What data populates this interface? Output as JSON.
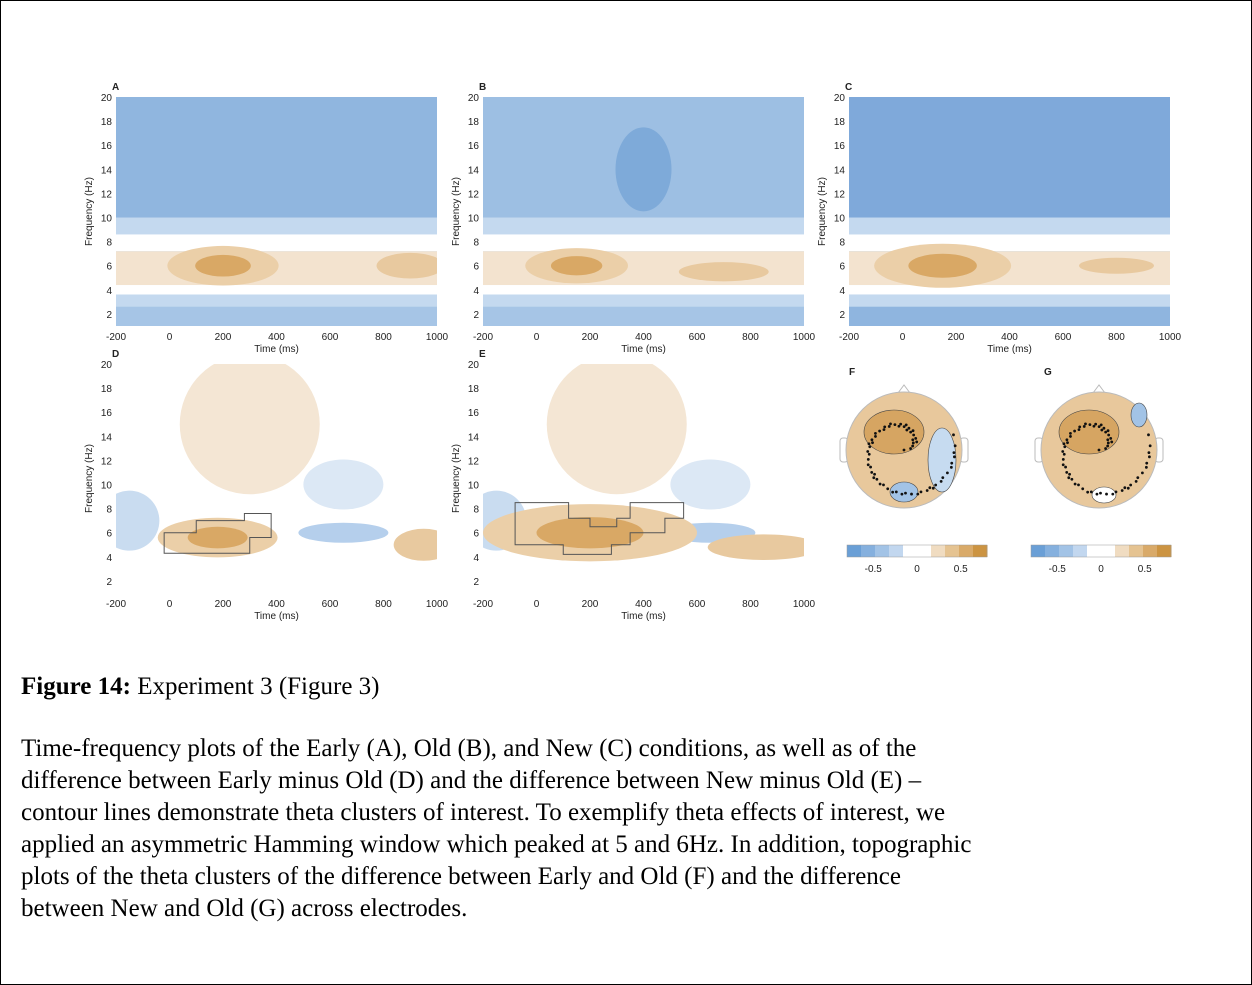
{
  "figure": {
    "panels": [
      {
        "label": "A",
        "xlabel": "Time (ms)",
        "ylabel": "Frequency (Hz)",
        "xlim": [
          -200,
          1000
        ],
        "ylim": [
          1,
          20
        ],
        "xticks": [
          -200,
          0,
          200,
          400,
          600,
          800,
          1000
        ],
        "yticks": [
          2,
          4,
          6,
          8,
          10,
          12,
          14,
          16,
          18,
          20
        ]
      },
      {
        "label": "B",
        "xlabel": "Time (ms)",
        "ylabel": "Frequency (Hz)",
        "xlim": [
          -200,
          1000
        ],
        "ylim": [
          1,
          20
        ],
        "xticks": [
          -200,
          0,
          200,
          400,
          600,
          800,
          1000
        ],
        "yticks": [
          2,
          4,
          6,
          8,
          10,
          12,
          14,
          16,
          18,
          20
        ]
      },
      {
        "label": "C",
        "xlabel": "Time (ms)",
        "ylabel": "Frequency (Hz)",
        "xlim": [
          -200,
          1000
        ],
        "ylim": [
          1,
          20
        ],
        "xticks": [
          -200,
          0,
          200,
          400,
          600,
          800,
          1000
        ],
        "yticks": [
          2,
          4,
          6,
          8,
          10,
          12,
          14,
          16,
          18,
          20
        ]
      },
      {
        "label": "D",
        "xlabel": "Time (ms)",
        "ylabel": "Frequency (Hz)",
        "xlim": [
          -200,
          1000
        ],
        "ylim": [
          1,
          20
        ],
        "xticks": [
          -200,
          0,
          200,
          400,
          600,
          800,
          1000
        ],
        "yticks": [
          2,
          4,
          6,
          8,
          10,
          12,
          14,
          16,
          18,
          20
        ]
      },
      {
        "label": "E",
        "xlabel": "Time (ms)",
        "ylabel": "Frequency (Hz)",
        "xlim": [
          -200,
          1000
        ],
        "ylim": [
          1,
          20
        ],
        "xticks": [
          -200,
          0,
          200,
          400,
          600,
          800,
          1000
        ],
        "yticks": [
          2,
          4,
          6,
          8,
          10,
          12,
          14,
          16,
          18,
          20
        ]
      }
    ],
    "topoplots": [
      {
        "label": "F",
        "clim": [
          -0.8,
          0.8
        ],
        "ticks": [
          -0.5,
          0,
          0.5
        ]
      },
      {
        "label": "G",
        "clim": [
          -0.8,
          0.8
        ],
        "ticks": [
          -0.5,
          0,
          0.5
        ]
      }
    ]
  },
  "caption": {
    "label": "Figure 14:",
    "title": "Experiment 3 (Figure 3)",
    "lines": [
      "Time-frequency plots of the Early (A), Old (B), and New (C) conditions, as well as of the",
      "difference between Early minus Old (D) and the difference between New minus Old (E) –",
      "contour lines demonstrate theta clusters of interest. To exemplify theta effects of interest, we",
      "applied an asymmetric Hamming window which peaked at 5 and 6Hz. In addition, topographic",
      "plots of the theta clusters of the difference between Early and Old (F) and the difference",
      "between New and Old (G) across electrodes."
    ]
  }
}
